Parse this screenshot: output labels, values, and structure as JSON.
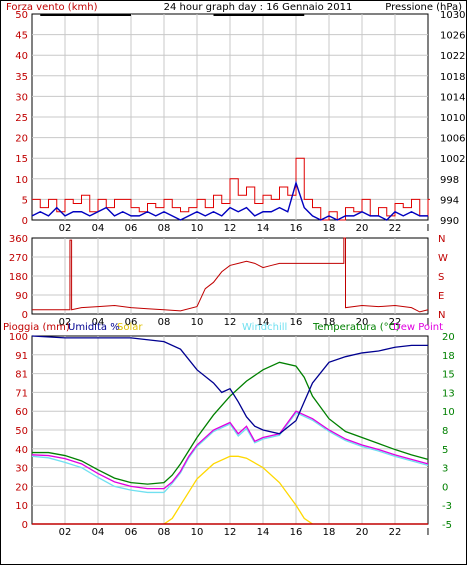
{
  "colors": {
    "wind_gust": "#e00000",
    "wind_avg": "#0000c0",
    "pressure": "#000000",
    "direction": "#c00000",
    "rain": "#c00000",
    "humidity": "#000090",
    "solar": "#ffd800",
    "windchill": "#70e0f0",
    "temperature": "#008000",
    "dewpoint": "#e000e0",
    "grid": "#c8c8c8",
    "axis_red": "#c00000",
    "axis_green": "#008000"
  },
  "header": {
    "left_label": "Forza vento (kmh)",
    "title": "24 hour graph day : 16 Gennaio 2011",
    "right_label": "Pressione (hPa)"
  },
  "panel3_labels": {
    "rain": "Pioggia (mm)",
    "humidity": "Umidita %",
    "solar": "Solar",
    "windchill": "Windchill",
    "temperature": "Temperatura (°C)",
    "dewpoint": "Dew Point"
  },
  "chart_data": [
    {
      "type": "line",
      "title": "24 hour graph day : 16 Gennaio 2011",
      "x_ticks": [
        "02",
        "04",
        "06",
        "08",
        "10",
        "12",
        "14",
        "16",
        "18",
        "20",
        "22",
        "I"
      ],
      "y_left": {
        "label": "Forza vento (kmh)",
        "range": [
          0,
          50
        ],
        "ticks": [
          "0",
          "5",
          "10",
          "15",
          "20",
          "25",
          "30",
          "35",
          "40",
          "45",
          "50"
        ]
      },
      "y_right": {
        "label": "Pressione (hPa)",
        "range": [
          990,
          1030
        ],
        "ticks": [
          "990",
          "994",
          "998",
          "1002",
          "1006",
          "1010",
          "1014",
          "1018",
          "1022",
          "1026",
          "1030"
        ]
      },
      "series": [
        {
          "name": "Forza vento (kmh)",
          "role": "gust",
          "x": [
            0,
            0.5,
            1,
            1.5,
            2,
            2.5,
            3,
            3.5,
            4,
            4.5,
            5,
            5.5,
            6,
            6.5,
            7,
            7.5,
            8,
            8.5,
            9,
            9.5,
            10,
            10.5,
            11,
            11.5,
            12,
            12.5,
            13,
            13.5,
            14,
            14.5,
            15,
            15.5,
            16,
            16.5,
            17,
            17.5,
            18,
            18.5,
            19,
            19.5,
            20,
            20.5,
            21,
            21.5,
            22,
            22.5,
            23,
            23.5,
            24
          ],
          "y": [
            5,
            3,
            5,
            2,
            5,
            4,
            6,
            2,
            5,
            3,
            5,
            5,
            3,
            2,
            4,
            3,
            5,
            3,
            2,
            3,
            5,
            3,
            6,
            4,
            10,
            6,
            8,
            4,
            6,
            5,
            8,
            6,
            15,
            5,
            3,
            0,
            2,
            0,
            3,
            2,
            5,
            1,
            3,
            1,
            4,
            3,
            5,
            1,
            5
          ]
        },
        {
          "name": "Forza vento (kmh)",
          "role": "average",
          "x": [
            0,
            0.5,
            1,
            1.5,
            2,
            2.5,
            3,
            3.5,
            4,
            4.5,
            5,
            5.5,
            6,
            6.5,
            7,
            7.5,
            8,
            8.5,
            9,
            9.5,
            10,
            10.5,
            11,
            11.5,
            12,
            12.5,
            13,
            13.5,
            14,
            14.5,
            15,
            15.5,
            16,
            16.5,
            17,
            17.5,
            18,
            18.5,
            19,
            19.5,
            20,
            20.5,
            21,
            21.5,
            22,
            22.5,
            23,
            23.5,
            24
          ],
          "y": [
            1,
            2,
            1,
            3,
            1,
            2,
            2,
            1,
            2,
            3,
            1,
            2,
            1,
            1,
            2,
            1,
            2,
            1,
            0,
            1,
            2,
            1,
            2,
            1,
            3,
            2,
            3,
            1,
            2,
            2,
            3,
            2,
            9,
            3,
            1,
            0,
            1,
            0,
            1,
            1,
            2,
            1,
            1,
            0,
            2,
            1,
            2,
            1,
            1
          ]
        },
        {
          "name": "Pressione (hPa)",
          "x": [
            0.5,
            6
          ],
          "y": [
            1030,
            1030
          ]
        },
        {
          "name": "Pressione (hPa)",
          "x": [
            11,
            16.5
          ],
          "y": [
            1030,
            1030
          ]
        }
      ]
    },
    {
      "type": "line",
      "x_ticks": [
        "02",
        "04",
        "06",
        "08",
        "10",
        "12",
        "14",
        "16",
        "18",
        "20",
        "22",
        "I"
      ],
      "y_left": {
        "range": [
          0,
          360
        ],
        "ticks": [
          "0",
          "90",
          "180",
          "270",
          "360"
        ]
      },
      "y_right": {
        "ticks": [
          "N",
          "E",
          "S",
          "W",
          "N"
        ]
      },
      "series": [
        {
          "name": "direction",
          "x": [
            0,
            2.3,
            2.3,
            2.4,
            2.4,
            3,
            4,
            5,
            6,
            7,
            8,
            9,
            10,
            10.5,
            11,
            11.5,
            12,
            12.5,
            13,
            13.5,
            14,
            14.5,
            15,
            16,
            17,
            18,
            18.9,
            18.9,
            19,
            19,
            20,
            21,
            22,
            23,
            23.5,
            24
          ],
          "y": [
            20,
            20,
            350,
            350,
            20,
            30,
            35,
            40,
            30,
            25,
            20,
            15,
            35,
            120,
            150,
            200,
            230,
            240,
            250,
            240,
            220,
            230,
            240,
            240,
            240,
            240,
            240,
            360,
            360,
            30,
            40,
            35,
            40,
            30,
            10,
            20
          ]
        }
      ]
    },
    {
      "type": "line",
      "x_ticks": [
        "02",
        "04",
        "06",
        "08",
        "10",
        "12",
        "14",
        "16",
        "18",
        "20",
        "22",
        "I"
      ],
      "y_left": {
        "label": "Pioggia (mm) Umidita %",
        "ticks": [
          "0",
          "10",
          "20",
          "30",
          "40",
          "50",
          "60",
          "71",
          "81",
          "91",
          "100"
        ]
      },
      "y_right": {
        "label": "Temperatura (°C)",
        "range": [
          -5,
          20
        ],
        "ticks": [
          "-5",
          "-3",
          "0",
          "3",
          "5",
          "8",
          "10",
          "13",
          "15",
          "18",
          "20"
        ]
      },
      "series": [
        {
          "name": "Umidita %",
          "axis": "left",
          "x": [
            0,
            2,
            4,
            6,
            7,
            8,
            9,
            10,
            11,
            11.5,
            12,
            12.5,
            13,
            13.5,
            14,
            15,
            16,
            16.5,
            17,
            18,
            19,
            20,
            21,
            22,
            23,
            24
          ],
          "y": [
            100,
            99,
            99,
            99,
            98,
            97,
            93,
            82,
            75,
            70,
            72,
            65,
            57,
            52,
            50,
            48,
            55,
            65,
            75,
            86,
            89,
            91,
            92,
            94,
            95,
            95
          ]
        },
        {
          "name": "Solar",
          "axis": "left",
          "x": [
            8,
            8.5,
            9,
            9.5,
            10,
            11,
            12,
            12.5,
            13,
            14,
            15,
            16,
            16.5,
            17
          ],
          "y": [
            0,
            3,
            10,
            17,
            24,
            32,
            36,
            36,
            35,
            30,
            22,
            10,
            3,
            0
          ]
        },
        {
          "name": "Temperatura (°C)",
          "axis": "right",
          "x": [
            0,
            1,
            2,
            3,
            4,
            5,
            6,
            7,
            8,
            8.5,
            9,
            10,
            11,
            12,
            13,
            14,
            15,
            16,
            16.5,
            17,
            18,
            19,
            20,
            21,
            22,
            23,
            24
          ],
          "y": [
            4.5,
            4.5,
            4.1,
            3.4,
            2.2,
            1.1,
            0.5,
            0.3,
            0.5,
            1.5,
            3,
            6.5,
            9.5,
            12,
            14,
            15.5,
            16.5,
            16,
            14.5,
            12,
            9,
            7.3,
            6.5,
            5.7,
            4.9,
            4.2,
            3.6
          ]
        },
        {
          "name": "Dew Point",
          "axis": "right",
          "x": [
            0,
            1,
            2,
            3,
            4,
            5,
            6,
            7,
            8,
            8.5,
            9,
            9.5,
            10,
            11,
            12,
            12.5,
            13,
            13.5,
            14,
            15,
            16,
            17,
            18,
            19,
            20,
            21,
            22,
            23,
            24
          ],
          "y": [
            4.2,
            4.1,
            3.7,
            3,
            1.7,
            0.6,
            0,
            -0.3,
            -0.3,
            0.6,
            2,
            4,
            5.5,
            7.5,
            8.5,
            7,
            8,
            6,
            6.5,
            7,
            10,
            9,
            7.5,
            6.3,
            5.5,
            4.9,
            4.2,
            3.6,
            3
          ]
        },
        {
          "name": "Windchill",
          "axis": "right",
          "x": [
            0,
            1,
            2,
            3,
            4,
            5,
            6,
            7,
            8,
            8.5,
            9,
            9.5,
            10,
            11,
            12,
            12.5,
            13,
            13.5,
            14,
            15,
            16,
            17,
            18,
            19,
            20,
            21,
            22,
            23,
            24
          ],
          "y": [
            4,
            3.8,
            3.2,
            2.5,
            1.2,
            0,
            -0.5,
            -0.8,
            -0.8,
            0.4,
            1.8,
            3.8,
            5.3,
            7.3,
            8.3,
            6.7,
            7.7,
            5.8,
            6.3,
            6.8,
            9.8,
            8.8,
            7.3,
            6.1,
            5.3,
            4.7,
            4,
            3.4,
            2.8
          ]
        },
        {
          "name": "Pioggia (mm)",
          "axis": "left",
          "x": [
            0,
            24
          ],
          "y": [
            0,
            0
          ]
        }
      ]
    }
  ]
}
